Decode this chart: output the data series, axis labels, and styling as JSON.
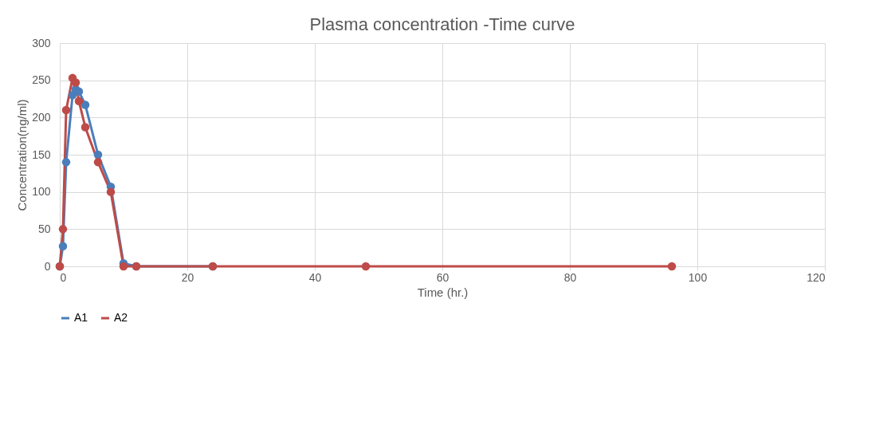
{
  "chart_data": {
    "type": "line",
    "title": "Plasma concentration -Time curve",
    "xlabel": "Time (hr.)",
    "ylabel": "Concentration(ng/ml)",
    "x": [
      0,
      0.5,
      1,
      2,
      2.5,
      3,
      4,
      6,
      8,
      10,
      12,
      24,
      48,
      96
    ],
    "series": [
      {
        "name": "A1",
        "color": "#4a7ebb",
        "values": [
          0,
          27,
          140,
          230,
          238,
          235,
          217,
          150,
          107,
          4,
          0,
          0,
          null,
          null
        ]
      },
      {
        "name": "A2",
        "color": "#be4b48",
        "values": [
          0,
          50,
          210,
          253,
          247,
          222,
          187,
          140,
          100,
          0,
          0,
          0,
          0,
          0
        ]
      }
    ],
    "xlim": [
      0,
      120
    ],
    "xticks": [
      0,
      20,
      40,
      60,
      80,
      100,
      120
    ],
    "ylim": [
      0,
      300
    ],
    "yticks": [
      0,
      50,
      100,
      150,
      200,
      250,
      300
    ],
    "grid": true,
    "legend": "bottom",
    "marker": "circle",
    "line_style": "solid"
  }
}
